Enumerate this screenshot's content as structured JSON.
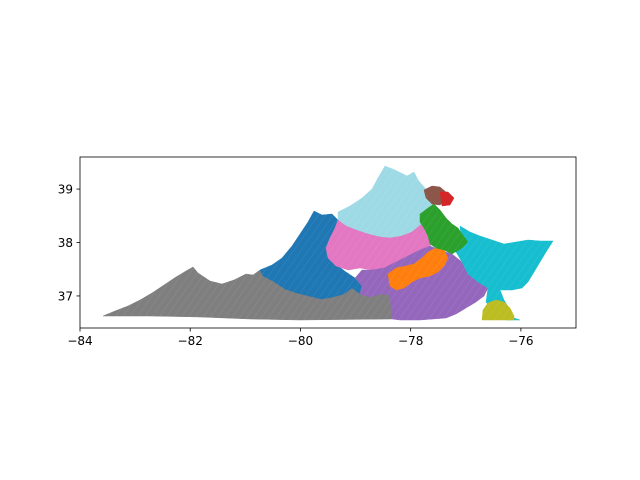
{
  "chart_data": {
    "type": "choropleth-map",
    "xlim": [
      -84,
      -75
    ],
    "ylim": [
      36.4,
      39.6
    ],
    "x_ticks": [
      -84,
      -82,
      -80,
      -78,
      -76
    ],
    "y_ticks": [
      37,
      38,
      39
    ],
    "x_tick_labels": [
      "−84",
      "−82",
      "−80",
      "−78",
      "−76"
    ],
    "y_tick_labels": [
      "37",
      "38",
      "39"
    ],
    "grid": false,
    "legend": "none",
    "regions": [
      {
        "id": "sw",
        "color": "#7f7f7f"
      },
      {
        "id": "west-central",
        "color": "#1f77b4"
      },
      {
        "id": "north",
        "color": "#9edae5"
      },
      {
        "id": "central",
        "color": "#e377c2"
      },
      {
        "id": "south-central",
        "color": "#9467bd"
      },
      {
        "id": "richmond",
        "color": "#ff7f0e"
      },
      {
        "id": "east",
        "color": "#17becf"
      },
      {
        "id": "north-central",
        "color": "#2ca02c"
      },
      {
        "id": "nova-brown",
        "color": "#8c564b"
      },
      {
        "id": "nova-red",
        "color": "#d62728"
      },
      {
        "id": "se-corner",
        "color": "#bcbd22"
      }
    ]
  }
}
